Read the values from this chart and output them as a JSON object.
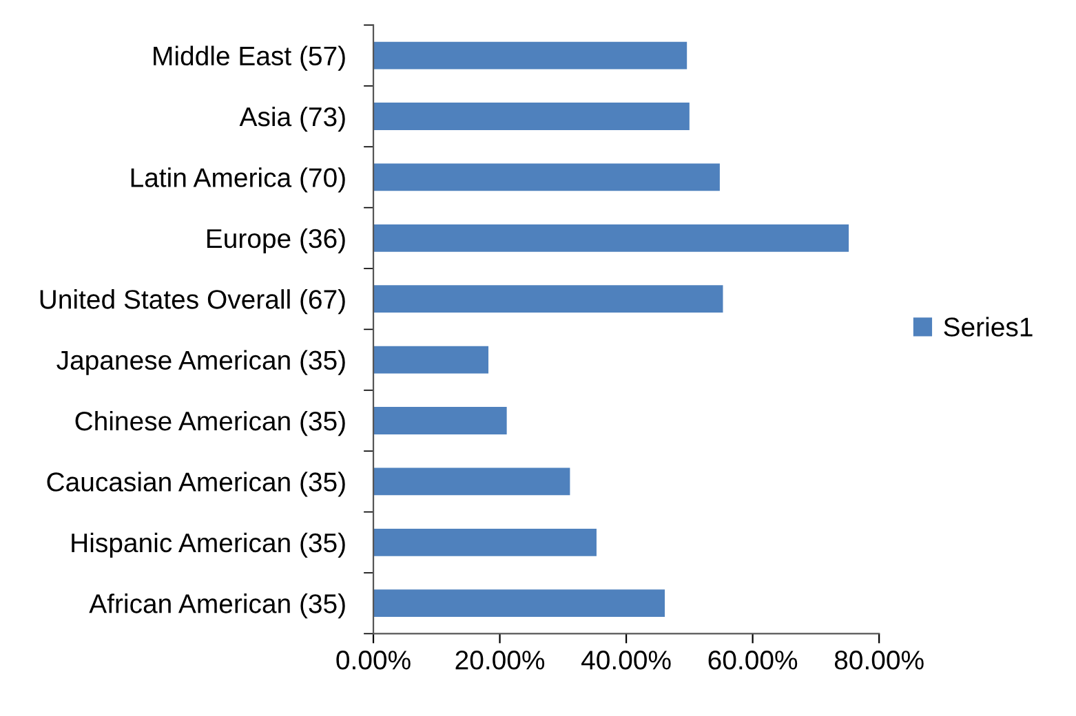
{
  "chart_data": {
    "type": "bar",
    "orientation": "horizontal",
    "categories": [
      "Middle East (57)",
      "Asia (73)",
      "Latin America (70)",
      "Europe (36)",
      "United States Overall (67)",
      "Japanese American (35)",
      "Chinese American (35)",
      "Caucasian American (35)",
      "Hispanic American (35)",
      "African American (35)"
    ],
    "series": [
      {
        "name": "Series1",
        "color": "#4f81bd",
        "values": [
          49.6,
          50.0,
          54.8,
          75.2,
          55.3,
          18.2,
          21.1,
          31.1,
          35.3,
          46.1
        ]
      }
    ],
    "xlim": [
      0,
      80
    ],
    "xticks": [
      {
        "value": 0,
        "label": "0.00%"
      },
      {
        "value": 20,
        "label": "20.00%"
      },
      {
        "value": 40,
        "label": "40.00%"
      },
      {
        "value": 60,
        "label": "60.00%"
      },
      {
        "value": 80,
        "label": "80.00%"
      }
    ],
    "grid": false,
    "legend": "right"
  }
}
